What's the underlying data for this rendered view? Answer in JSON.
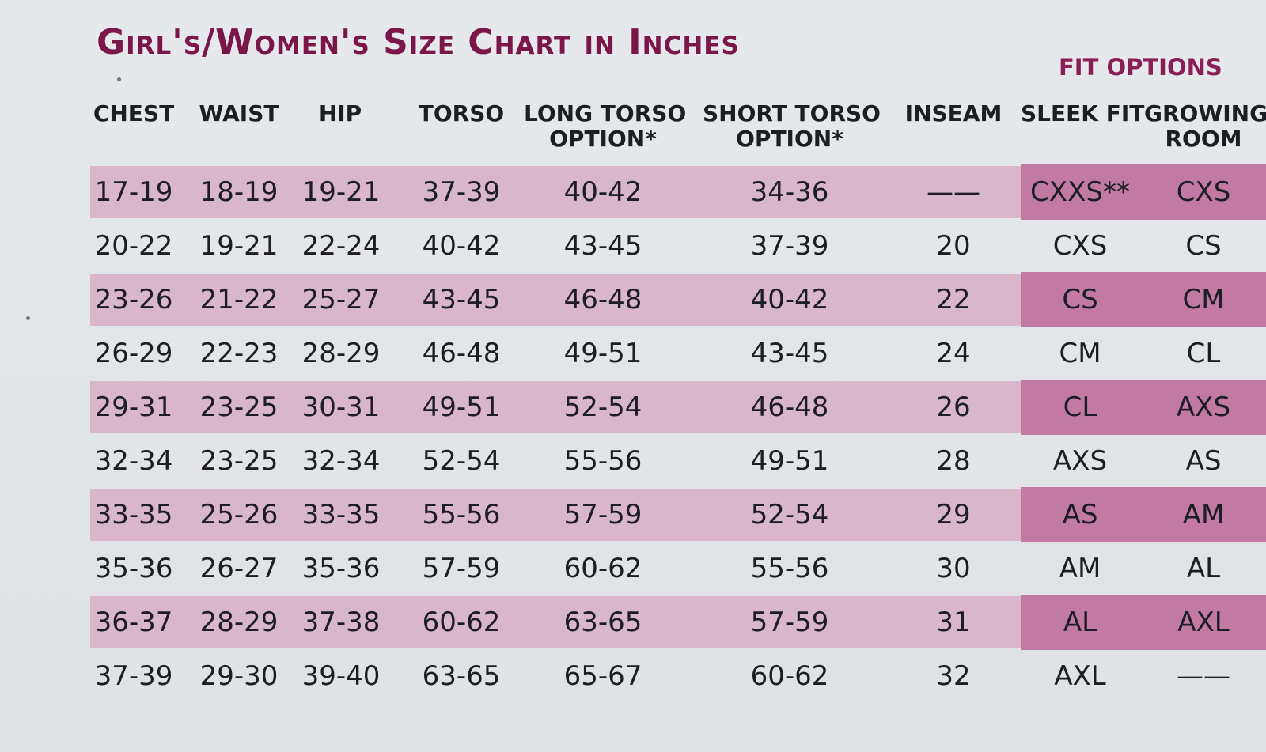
{
  "title": "Girl's/Women's Size Chart in Inches",
  "fit_options_label": "FIT OPTIONS",
  "headers": {
    "chest": "CHEST",
    "waist": "WAIST",
    "hip": "HIP",
    "torso": "TORSO",
    "long_torso_1": "LONG TORSO",
    "long_torso_2": "OPTION*",
    "short_torso_1": "SHORT TORSO",
    "short_torso_2": "OPTION*",
    "inseam": "INSEAM",
    "sleek_fit": "SLEEK FIT",
    "growing_room_1": "GROWING",
    "growing_room_2": "ROOM"
  },
  "rows": [
    [
      "17-19",
      "18-19",
      "19-21",
      "37-39",
      "40-42",
      "34-36",
      "——",
      "CXXS**",
      "CXS"
    ],
    [
      "20-22",
      "19-21",
      "22-24",
      "40-42",
      "43-45",
      "37-39",
      "20",
      "CXS",
      "CS"
    ],
    [
      "23-26",
      "21-22",
      "25-27",
      "43-45",
      "46-48",
      "40-42",
      "22",
      "CS",
      "CM"
    ],
    [
      "26-29",
      "22-23",
      "28-29",
      "46-48",
      "49-51",
      "43-45",
      "24",
      "CM",
      "CL"
    ],
    [
      "29-31",
      "23-25",
      "30-31",
      "49-51",
      "52-54",
      "46-48",
      "26",
      "CL",
      "AXS"
    ],
    [
      "32-34",
      "23-25",
      "32-34",
      "52-54",
      "55-56",
      "49-51",
      "28",
      "AXS",
      "AS"
    ],
    [
      "33-35",
      "25-26",
      "33-35",
      "55-56",
      "57-59",
      "52-54",
      "29",
      "AS",
      "AM"
    ],
    [
      "35-36",
      "26-27",
      "35-36",
      "57-59",
      "60-62",
      "55-56",
      "30",
      "AM",
      "AL"
    ],
    [
      "36-37",
      "28-29",
      "37-38",
      "60-62",
      "63-65",
      "57-59",
      "31",
      "AL",
      "AXL"
    ],
    [
      "37-39",
      "29-30",
      "39-40",
      "63-65",
      "65-67",
      "60-62",
      "32",
      "AXL",
      "——"
    ]
  ],
  "colors": {
    "title": "#7b1648",
    "row_shade": "#d9b6c9",
    "fit_shade": "#c27aa3"
  }
}
